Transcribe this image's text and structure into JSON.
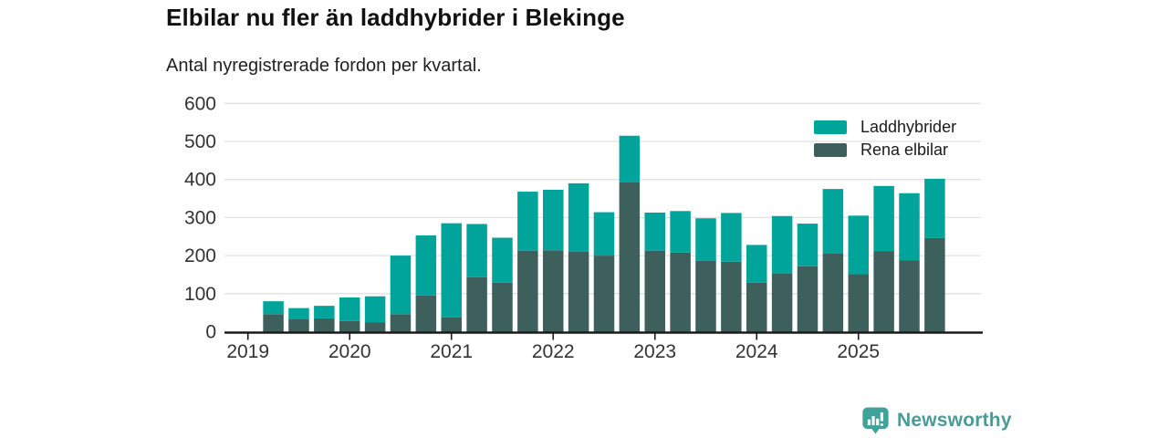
{
  "header": {
    "title": "Elbilar nu fler än laddhybrider i Blekinge",
    "subtitle": "Antal nyregistrerade fordon per kvartal."
  },
  "chart_data": {
    "type": "bar",
    "stacked": true,
    "title": "Elbilar nu fler än laddhybrider i Blekinge",
    "subtitle": "Antal nyregistrerade fordon per kvartal.",
    "xlabel": "",
    "ylabel": "",
    "ylim": [
      0,
      600
    ],
    "yticks": [
      0,
      100,
      200,
      300,
      400,
      500,
      600
    ],
    "grid": true,
    "legend_position": "top-right",
    "x_tick_labels": [
      "2019",
      "2020",
      "2021",
      "2022",
      "2023",
      "2024",
      "2025"
    ],
    "categories": [
      "2019 Q1",
      "2019 Q2",
      "2019 Q3",
      "2019 Q4",
      "2020 Q1",
      "2020 Q2",
      "2020 Q3",
      "2020 Q4",
      "2021 Q1",
      "2021 Q2",
      "2021 Q3",
      "2021 Q4",
      "2022 Q1",
      "2022 Q2",
      "2022 Q3",
      "2022 Q4",
      "2023 Q1",
      "2023 Q2",
      "2023 Q3",
      "2023 Q4",
      "2024 Q1",
      "2024 Q2",
      "2024 Q3",
      "2024 Q4",
      "2025 Q1",
      "2025 Q2",
      "2025 Q3",
      "2025 Q4"
    ],
    "series": [
      {
        "name": "Rena elbilar",
        "color": "#3D605C",
        "values": [
          0,
          46,
          34,
          35,
          28,
          24,
          46,
          95,
          38,
          143,
          129,
          213,
          214,
          210,
          200,
          393,
          213,
          208,
          186,
          184,
          129,
          154,
          172,
          206,
          151,
          212,
          188,
          246
        ]
      },
      {
        "name": "Laddhybrider",
        "color": "#00A49B",
        "values": [
          0,
          34,
          28,
          33,
          62,
          69,
          154,
          158,
          247,
          140,
          118,
          155,
          159,
          180,
          114,
          122,
          100,
          109,
          112,
          128,
          99,
          150,
          112,
          169,
          154,
          171,
          176,
          156
        ]
      }
    ],
    "colors": {
      "axis_line": "#1a1a1a",
      "grid_line": "#e2e2e2",
      "tick_text": "#333333"
    }
  },
  "footer": {
    "brand": "Newsworthy",
    "brand_color": "#4A9A95",
    "icon_color": "#3FA29B",
    "icon": "newsworthy-bar-chart-speech-bubble"
  }
}
